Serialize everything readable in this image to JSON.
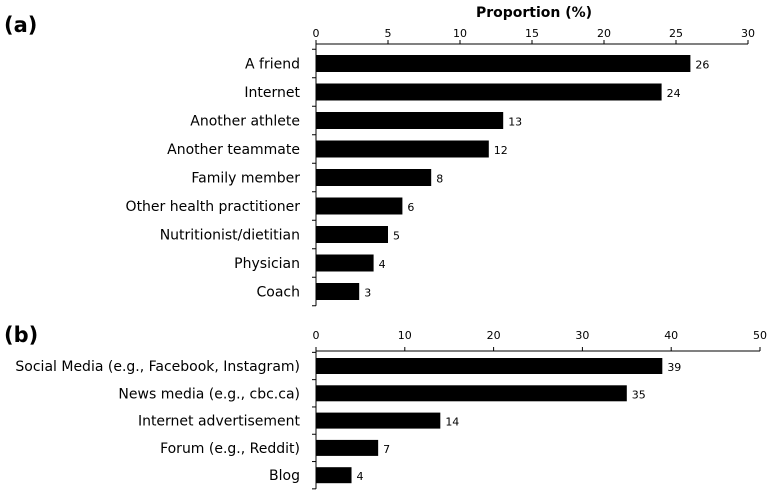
{
  "chart_data": [
    {
      "type": "bar",
      "orientation": "horizontal",
      "panel_label": "(a)",
      "xlabel": "Proportion (%)",
      "xlim": [
        0,
        30
      ],
      "ticks": [
        "0",
        "5",
        "10",
        "15",
        "20",
        "25",
        "30"
      ],
      "categories": [
        "A friend",
        "Internet",
        "Another athlete",
        "Another teammate",
        "Family member",
        "Other health practitioner",
        "Nutritionist/dietitian",
        "Physician",
        "Coach"
      ],
      "values": [
        26,
        24,
        13,
        12,
        8,
        6,
        5,
        4,
        3
      ],
      "value_labels": [
        "26",
        "24",
        "13",
        "12",
        "8",
        "6",
        "5",
        "4",
        "3"
      ],
      "bar_color": "#000000"
    },
    {
      "type": "bar",
      "orientation": "horizontal",
      "panel_label": "(b)",
      "xlabel": "",
      "xlim": [
        0,
        50
      ],
      "ticks": [
        "0",
        "10",
        "20",
        "30",
        "40",
        "50"
      ],
      "categories": [
        "Social Media (e.g., Facebook, Instagram)",
        "News media (e.g., cbc.ca)",
        "Internet advertisement",
        "Forum (e.g., Reddit)",
        "Blog"
      ],
      "values": [
        39,
        35,
        14,
        7,
        4
      ],
      "value_labels": [
        "39",
        "35",
        "14",
        "7",
        "4"
      ],
      "bar_color": "#000000"
    }
  ]
}
